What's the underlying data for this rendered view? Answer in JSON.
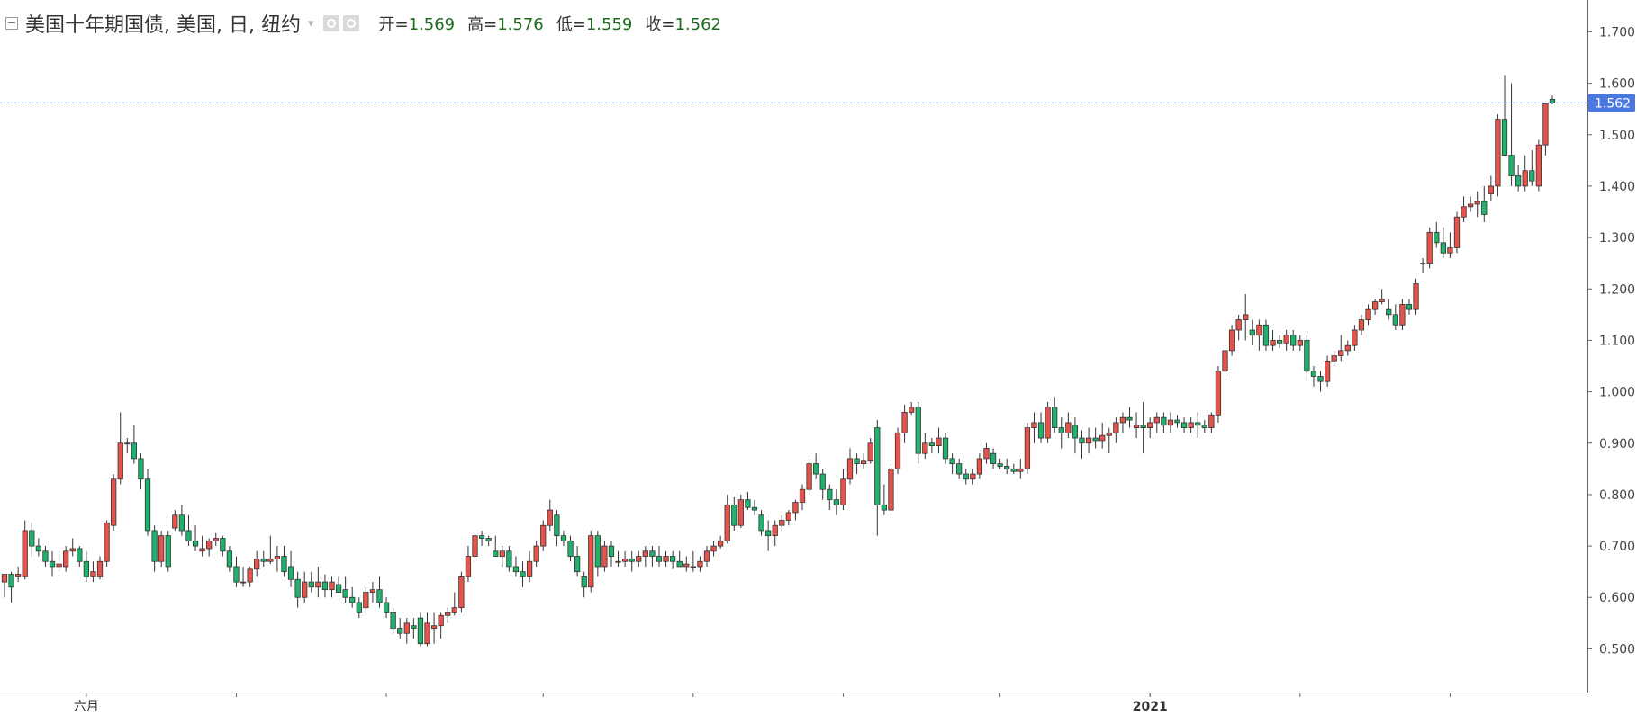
{
  "header": {
    "title": "美国十年期国债, 美国, 日, 纽约",
    "ohlc": {
      "open_label": "开=",
      "open": "1.569",
      "high_label": "高=",
      "high": "1.576",
      "low_label": "低=",
      "low": "1.559",
      "close_label": "收=",
      "close": "1.562"
    }
  },
  "colors": {
    "up": "#e5534b",
    "down": "#20b26c",
    "grid": "#ffffff",
    "axis": "#555555",
    "last_price_bg": "#4a78e0",
    "last_price_line": "#4a78e0"
  },
  "chart_data": {
    "type": "candlestick",
    "ylim": [
      0.415,
      1.762
    ],
    "y_ticks": [
      "0.500",
      "0.600",
      "0.700",
      "0.800",
      "0.900",
      "1.000",
      "1.100",
      "1.200",
      "1.300",
      "1.400",
      "1.500",
      "1.600",
      "1.700"
    ],
    "x_labels": [
      {
        "label": "六月",
        "index": 12
      },
      {
        "label": "2021",
        "index": 168
      }
    ],
    "x_tick_indices": [
      34,
      56,
      79,
      101,
      123,
      146,
      168,
      190,
      212
    ],
    "last_price": "1.562",
    "candles": [
      [
        0.63,
        0.645,
        0.6,
        0.645
      ],
      [
        0.645,
        0.65,
        0.59,
        0.62
      ],
      [
        0.64,
        0.66,
        0.63,
        0.645
      ],
      [
        0.64,
        0.75,
        0.635,
        0.73
      ],
      [
        0.73,
        0.745,
        0.68,
        0.7
      ],
      [
        0.7,
        0.715,
        0.68,
        0.69
      ],
      [
        0.69,
        0.7,
        0.66,
        0.67
      ],
      [
        0.67,
        0.69,
        0.64,
        0.66
      ],
      [
        0.66,
        0.69,
        0.65,
        0.665
      ],
      [
        0.66,
        0.7,
        0.65,
        0.69
      ],
      [
        0.69,
        0.715,
        0.68,
        0.695
      ],
      [
        0.695,
        0.7,
        0.66,
        0.67
      ],
      [
        0.67,
        0.69,
        0.63,
        0.64
      ],
      [
        0.64,
        0.67,
        0.63,
        0.65
      ],
      [
        0.64,
        0.68,
        0.635,
        0.67
      ],
      [
        0.67,
        0.75,
        0.66,
        0.745
      ],
      [
        0.74,
        0.84,
        0.73,
        0.83
      ],
      [
        0.83,
        0.96,
        0.82,
        0.9
      ],
      [
        0.9,
        0.91,
        0.88,
        0.9
      ],
      [
        0.9,
        0.935,
        0.86,
        0.87
      ],
      [
        0.87,
        0.88,
        0.81,
        0.83
      ],
      [
        0.83,
        0.85,
        0.72,
        0.73
      ],
      [
        0.73,
        0.74,
        0.65,
        0.67
      ],
      [
        0.67,
        0.73,
        0.66,
        0.72
      ],
      [
        0.72,
        0.73,
        0.65,
        0.66
      ],
      [
        0.735,
        0.77,
        0.73,
        0.76
      ],
      [
        0.76,
        0.78,
        0.72,
        0.73
      ],
      [
        0.73,
        0.76,
        0.7,
        0.71
      ],
      [
        0.71,
        0.74,
        0.69,
        0.7
      ],
      [
        0.69,
        0.72,
        0.68,
        0.695
      ],
      [
        0.695,
        0.715,
        0.68,
        0.71
      ],
      [
        0.71,
        0.725,
        0.7,
        0.715
      ],
      [
        0.715,
        0.72,
        0.68,
        0.69
      ],
      [
        0.69,
        0.7,
        0.65,
        0.66
      ],
      [
        0.66,
        0.68,
        0.62,
        0.63
      ],
      [
        0.63,
        0.66,
        0.62,
        0.63
      ],
      [
        0.63,
        0.66,
        0.62,
        0.655
      ],
      [
        0.655,
        0.69,
        0.64,
        0.675
      ],
      [
        0.675,
        0.69,
        0.66,
        0.67
      ],
      [
        0.67,
        0.72,
        0.665,
        0.675
      ],
      [
        0.675,
        0.7,
        0.65,
        0.68
      ],
      [
        0.68,
        0.7,
        0.64,
        0.65
      ],
      [
        0.66,
        0.69,
        0.62,
        0.635
      ],
      [
        0.635,
        0.65,
        0.58,
        0.6
      ],
      [
        0.6,
        0.65,
        0.59,
        0.63
      ],
      [
        0.63,
        0.65,
        0.61,
        0.62
      ],
      [
        0.62,
        0.66,
        0.6,
        0.63
      ],
      [
        0.63,
        0.645,
        0.6,
        0.615
      ],
      [
        0.615,
        0.64,
        0.6,
        0.63
      ],
      [
        0.625,
        0.64,
        0.61,
        0.61
      ],
      [
        0.615,
        0.64,
        0.59,
        0.6
      ],
      [
        0.6,
        0.62,
        0.58,
        0.59
      ],
      [
        0.59,
        0.6,
        0.56,
        0.57
      ],
      [
        0.58,
        0.62,
        0.57,
        0.61
      ],
      [
        0.61,
        0.63,
        0.59,
        0.615
      ],
      [
        0.615,
        0.64,
        0.58,
        0.59
      ],
      [
        0.59,
        0.6,
        0.56,
        0.57
      ],
      [
        0.57,
        0.58,
        0.53,
        0.54
      ],
      [
        0.54,
        0.56,
        0.52,
        0.53
      ],
      [
        0.53,
        0.56,
        0.51,
        0.55
      ],
      [
        0.545,
        0.56,
        0.52,
        0.54
      ],
      [
        0.56,
        0.57,
        0.505,
        0.51
      ],
      [
        0.51,
        0.57,
        0.505,
        0.55
      ],
      [
        0.54,
        0.57,
        0.51,
        0.545
      ],
      [
        0.545,
        0.57,
        0.52,
        0.565
      ],
      [
        0.565,
        0.58,
        0.55,
        0.57
      ],
      [
        0.57,
        0.61,
        0.565,
        0.58
      ],
      [
        0.58,
        0.65,
        0.57,
        0.64
      ],
      [
        0.64,
        0.7,
        0.63,
        0.68
      ],
      [
        0.68,
        0.725,
        0.67,
        0.72
      ],
      [
        0.72,
        0.73,
        0.7,
        0.715
      ],
      [
        0.715,
        0.72,
        0.7,
        0.71
      ],
      [
        0.69,
        0.72,
        0.68,
        0.68
      ],
      [
        0.68,
        0.7,
        0.66,
        0.69
      ],
      [
        0.69,
        0.7,
        0.65,
        0.66
      ],
      [
        0.66,
        0.68,
        0.64,
        0.65
      ],
      [
        0.65,
        0.67,
        0.62,
        0.64
      ],
      [
        0.64,
        0.69,
        0.63,
        0.67
      ],
      [
        0.67,
        0.71,
        0.66,
        0.7
      ],
      [
        0.7,
        0.75,
        0.69,
        0.74
      ],
      [
        0.74,
        0.79,
        0.73,
        0.77
      ],
      [
        0.76,
        0.77,
        0.7,
        0.72
      ],
      [
        0.72,
        0.73,
        0.7,
        0.71
      ],
      [
        0.71,
        0.72,
        0.67,
        0.68
      ],
      [
        0.68,
        0.7,
        0.64,
        0.65
      ],
      [
        0.64,
        0.65,
        0.6,
        0.62
      ],
      [
        0.62,
        0.73,
        0.61,
        0.72
      ],
      [
        0.72,
        0.73,
        0.64,
        0.66
      ],
      [
        0.66,
        0.71,
        0.65,
        0.7
      ],
      [
        0.7,
        0.71,
        0.66,
        0.68
      ],
      [
        0.67,
        0.69,
        0.66,
        0.67
      ],
      [
        0.67,
        0.69,
        0.66,
        0.675
      ],
      [
        0.675,
        0.69,
        0.65,
        0.67
      ],
      [
        0.67,
        0.69,
        0.66,
        0.68
      ],
      [
        0.68,
        0.7,
        0.66,
        0.69
      ],
      [
        0.69,
        0.7,
        0.66,
        0.68
      ],
      [
        0.68,
        0.7,
        0.66,
        0.67
      ],
      [
        0.67,
        0.69,
        0.66,
        0.68
      ],
      [
        0.68,
        0.69,
        0.655,
        0.67
      ],
      [
        0.67,
        0.69,
        0.66,
        0.66
      ],
      [
        0.66,
        0.68,
        0.65,
        0.665
      ],
      [
        0.66,
        0.69,
        0.65,
        0.66
      ],
      [
        0.66,
        0.68,
        0.65,
        0.67
      ],
      [
        0.67,
        0.7,
        0.66,
        0.69
      ],
      [
        0.69,
        0.71,
        0.68,
        0.7
      ],
      [
        0.7,
        0.72,
        0.695,
        0.71
      ],
      [
        0.71,
        0.8,
        0.705,
        0.78
      ],
      [
        0.78,
        0.795,
        0.73,
        0.74
      ],
      [
        0.74,
        0.8,
        0.735,
        0.79
      ],
      [
        0.79,
        0.805,
        0.77,
        0.775
      ],
      [
        0.775,
        0.79,
        0.76,
        0.77
      ],
      [
        0.76,
        0.77,
        0.72,
        0.73
      ],
      [
        0.73,
        0.75,
        0.69,
        0.72
      ],
      [
        0.72,
        0.75,
        0.7,
        0.74
      ],
      [
        0.74,
        0.76,
        0.73,
        0.75
      ],
      [
        0.75,
        0.77,
        0.74,
        0.765
      ],
      [
        0.765,
        0.79,
        0.75,
        0.785
      ],
      [
        0.785,
        0.82,
        0.77,
        0.81
      ],
      [
        0.81,
        0.87,
        0.8,
        0.86
      ],
      [
        0.86,
        0.88,
        0.83,
        0.84
      ],
      [
        0.84,
        0.85,
        0.79,
        0.81
      ],
      [
        0.81,
        0.82,
        0.77,
        0.79
      ],
      [
        0.79,
        0.81,
        0.76,
        0.78
      ],
      [
        0.78,
        0.85,
        0.77,
        0.83
      ],
      [
        0.83,
        0.89,
        0.82,
        0.87
      ],
      [
        0.87,
        0.88,
        0.84,
        0.86
      ],
      [
        0.86,
        0.88,
        0.85,
        0.865
      ],
      [
        0.865,
        0.91,
        0.86,
        0.9
      ],
      [
        0.93,
        0.945,
        0.72,
        0.78
      ],
      [
        0.78,
        0.82,
        0.76,
        0.77
      ],
      [
        0.77,
        0.86,
        0.76,
        0.85
      ],
      [
        0.85,
        0.93,
        0.84,
        0.92
      ],
      [
        0.92,
        0.975,
        0.9,
        0.96
      ],
      [
        0.96,
        0.98,
        0.955,
        0.97
      ],
      [
        0.97,
        0.98,
        0.86,
        0.88
      ],
      [
        0.88,
        0.92,
        0.87,
        0.9
      ],
      [
        0.9,
        0.91,
        0.88,
        0.895
      ],
      [
        0.895,
        0.93,
        0.88,
        0.91
      ],
      [
        0.91,
        0.92,
        0.86,
        0.87
      ],
      [
        0.87,
        0.88,
        0.84,
        0.86
      ],
      [
        0.86,
        0.87,
        0.83,
        0.84
      ],
      [
        0.84,
        0.85,
        0.82,
        0.83
      ],
      [
        0.83,
        0.85,
        0.82,
        0.84
      ],
      [
        0.84,
        0.88,
        0.83,
        0.87
      ],
      [
        0.87,
        0.9,
        0.86,
        0.89
      ],
      [
        0.88,
        0.89,
        0.85,
        0.86
      ],
      [
        0.86,
        0.87,
        0.85,
        0.855
      ],
      [
        0.855,
        0.87,
        0.84,
        0.85
      ],
      [
        0.85,
        0.86,
        0.84,
        0.845
      ],
      [
        0.845,
        0.87,
        0.83,
        0.85
      ],
      [
        0.85,
        0.94,
        0.84,
        0.93
      ],
      [
        0.93,
        0.96,
        0.9,
        0.94
      ],
      [
        0.94,
        0.96,
        0.9,
        0.91
      ],
      [
        0.91,
        0.98,
        0.9,
        0.97
      ],
      [
        0.97,
        0.99,
        0.92,
        0.93
      ],
      [
        0.93,
        0.95,
        0.89,
        0.92
      ],
      [
        0.92,
        0.96,
        0.91,
        0.94
      ],
      [
        0.935,
        0.95,
        0.88,
        0.91
      ],
      [
        0.91,
        0.925,
        0.87,
        0.9
      ],
      [
        0.9,
        0.93,
        0.88,
        0.91
      ],
      [
        0.91,
        0.93,
        0.89,
        0.905
      ],
      [
        0.905,
        0.94,
        0.89,
        0.915
      ],
      [
        0.915,
        0.93,
        0.88,
        0.92
      ],
      [
        0.92,
        0.95,
        0.9,
        0.94
      ],
      [
        0.94,
        0.96,
        0.92,
        0.95
      ],
      [
        0.95,
        0.97,
        0.93,
        0.945
      ],
      [
        0.93,
        0.96,
        0.91,
        0.935
      ],
      [
        0.935,
        0.98,
        0.88,
        0.93
      ],
      [
        0.93,
        0.95,
        0.91,
        0.94
      ],
      [
        0.94,
        0.96,
        0.92,
        0.95
      ],
      [
        0.95,
        0.96,
        0.92,
        0.935
      ],
      [
        0.935,
        0.96,
        0.92,
        0.945
      ],
      [
        0.945,
        0.955,
        0.93,
        0.94
      ],
      [
        0.94,
        0.95,
        0.92,
        0.93
      ],
      [
        0.93,
        0.95,
        0.92,
        0.94
      ],
      [
        0.94,
        0.96,
        0.91,
        0.935
      ],
      [
        0.935,
        0.945,
        0.92,
        0.93
      ],
      [
        0.93,
        0.96,
        0.92,
        0.955
      ],
      [
        0.955,
        1.05,
        0.94,
        1.04
      ],
      [
        1.04,
        1.09,
        1.03,
        1.08
      ],
      [
        1.08,
        1.13,
        1.07,
        1.12
      ],
      [
        1.12,
        1.15,
        1.1,
        1.14
      ],
      [
        1.14,
        1.19,
        1.1,
        1.15
      ],
      [
        1.12,
        1.14,
        1.09,
        1.11
      ],
      [
        1.11,
        1.14,
        1.08,
        1.13
      ],
      [
        1.13,
        1.14,
        1.08,
        1.09
      ],
      [
        1.09,
        1.12,
        1.08,
        1.1
      ],
      [
        1.1,
        1.11,
        1.085,
        1.095
      ],
      [
        1.095,
        1.12,
        1.08,
        1.11
      ],
      [
        1.11,
        1.12,
        1.08,
        1.09
      ],
      [
        1.09,
        1.11,
        1.08,
        1.1
      ],
      [
        1.1,
        1.11,
        1.02,
        1.04
      ],
      [
        1.04,
        1.05,
        1.01,
        1.03
      ],
      [
        1.03,
        1.04,
        1.0,
        1.02
      ],
      [
        1.02,
        1.07,
        1.01,
        1.06
      ],
      [
        1.06,
        1.08,
        1.05,
        1.07
      ],
      [
        1.07,
        1.11,
        1.06,
        1.08
      ],
      [
        1.08,
        1.1,
        1.07,
        1.09
      ],
      [
        1.09,
        1.13,
        1.08,
        1.12
      ],
      [
        1.12,
        1.15,
        1.11,
        1.14
      ],
      [
        1.14,
        1.17,
        1.13,
        1.16
      ],
      [
        1.16,
        1.18,
        1.15,
        1.175
      ],
      [
        1.175,
        1.2,
        1.17,
        1.18
      ],
      [
        1.16,
        1.18,
        1.14,
        1.15
      ],
      [
        1.15,
        1.17,
        1.12,
        1.13
      ],
      [
        1.13,
        1.18,
        1.12,
        1.17
      ],
      [
        1.17,
        1.18,
        1.15,
        1.16
      ],
      [
        1.16,
        1.22,
        1.15,
        1.21
      ],
      [
        1.25,
        1.26,
        1.23,
        1.25
      ],
      [
        1.25,
        1.32,
        1.24,
        1.31
      ],
      [
        1.31,
        1.33,
        1.28,
        1.29
      ],
      [
        1.29,
        1.32,
        1.26,
        1.27
      ],
      [
        1.27,
        1.31,
        1.26,
        1.28
      ],
      [
        1.28,
        1.35,
        1.27,
        1.34
      ],
      [
        1.34,
        1.38,
        1.33,
        1.36
      ],
      [
        1.36,
        1.38,
        1.35,
        1.365
      ],
      [
        1.365,
        1.39,
        1.34,
        1.37
      ],
      [
        1.37,
        1.4,
        1.33,
        1.345
      ],
      [
        1.385,
        1.42,
        1.37,
        1.4
      ],
      [
        1.4,
        1.54,
        1.38,
        1.53
      ],
      [
        1.53,
        1.616,
        1.47,
        1.46
      ],
      [
        1.46,
        1.6,
        1.4,
        1.42
      ],
      [
        1.42,
        1.44,
        1.39,
        1.4
      ],
      [
        1.4,
        1.46,
        1.39,
        1.43
      ],
      [
        1.43,
        1.47,
        1.4,
        1.41
      ],
      [
        1.4,
        1.49,
        1.39,
        1.48
      ],
      [
        1.48,
        1.56,
        1.46,
        1.56
      ],
      [
        1.569,
        1.576,
        1.559,
        1.562
      ]
    ]
  }
}
